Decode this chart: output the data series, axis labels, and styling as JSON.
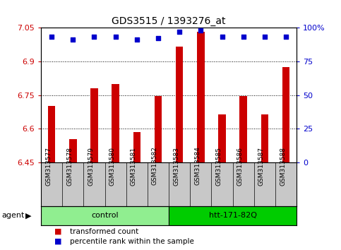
{
  "title": "GDS3515 / 1393276_at",
  "samples": [
    "GSM313577",
    "GSM313578",
    "GSM313579",
    "GSM313580",
    "GSM313581",
    "GSM313582",
    "GSM313583",
    "GSM313584",
    "GSM313585",
    "GSM313586",
    "GSM313587",
    "GSM313588"
  ],
  "red_values": [
    6.7,
    6.555,
    6.78,
    6.8,
    6.585,
    6.745,
    6.965,
    7.03,
    6.665,
    6.745,
    6.665,
    6.875
  ],
  "blue_values": [
    93,
    91,
    93,
    93,
    91,
    92,
    97,
    98,
    93,
    93,
    93,
    93
  ],
  "y_min": 6.45,
  "y_max": 7.05,
  "y_ticks": [
    6.45,
    6.6,
    6.75,
    6.9,
    7.05
  ],
  "y_tick_labels": [
    "6.45",
    "6.6",
    "6.75",
    "6.9",
    "7.05"
  ],
  "y2_ticks": [
    0,
    25,
    50,
    75,
    100
  ],
  "y2_tick_labels": [
    "0",
    "25",
    "50",
    "75",
    "100%"
  ],
  "grid_lines": [
    6.6,
    6.75,
    6.9
  ],
  "groups": [
    {
      "label": "control",
      "start": 0,
      "end": 6,
      "color": "#90EE90"
    },
    {
      "label": "htt-171-82Q",
      "start": 6,
      "end": 12,
      "color": "#00CC00"
    }
  ],
  "bar_color": "#CC0000",
  "dot_color": "#0000CC",
  "bg_color": "#ffffff",
  "tick_area_color": "#C8C8C8",
  "legend": [
    {
      "label": "transformed count",
      "color": "#CC0000"
    },
    {
      "label": "percentile rank within the sample",
      "color": "#0000CC"
    }
  ]
}
